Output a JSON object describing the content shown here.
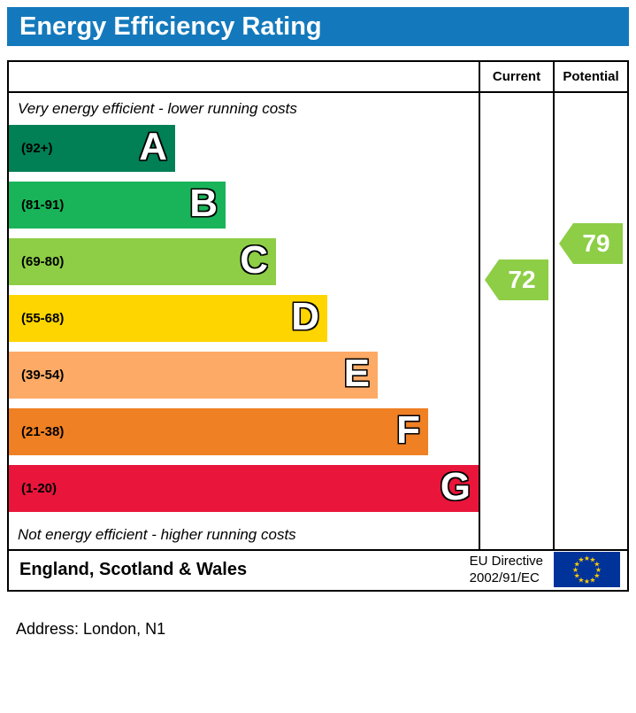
{
  "title": "Energy Efficiency Rating",
  "header": {
    "current_label": "Current",
    "potential_label": "Potential"
  },
  "notes": {
    "top": "Very energy efficient - lower running costs",
    "bottom": "Not energy efficient - higher running costs"
  },
  "bands": [
    {
      "letter": "A",
      "range_label": "(92+)",
      "min": 92,
      "max": 100,
      "color": "#008054"
    },
    {
      "letter": "B",
      "range_label": "(81-91)",
      "min": 81,
      "max": 91,
      "color": "#19b459"
    },
    {
      "letter": "C",
      "range_label": "(69-80)",
      "min": 69,
      "max": 80,
      "color": "#8dce46"
    },
    {
      "letter": "D",
      "range_label": "(55-68)",
      "min": 55,
      "max": 68,
      "color": "#ffd500"
    },
    {
      "letter": "E",
      "range_label": "(39-54)",
      "min": 39,
      "max": 54,
      "color": "#fcaa65"
    },
    {
      "letter": "F",
      "range_label": "(21-38)",
      "min": 21,
      "max": 38,
      "color": "#ef8023"
    },
    {
      "letter": "G",
      "range_label": "(1-20)",
      "min": 1,
      "max": 20,
      "color": "#e9153b"
    }
  ],
  "ratings": {
    "current": {
      "value": "72",
      "color": "#8dce46"
    },
    "potential": {
      "value": "79",
      "color": "#8dce46"
    }
  },
  "footer": {
    "region": "England, Scotland & Wales",
    "directive_line1": "EU Directive",
    "directive_line2": "2002/91/EC"
  },
  "address_line": "Address: London, N1",
  "colors": {
    "title_bar": "#1479bc",
    "eu_flag_bg": "#003399",
    "eu_flag_star": "#ffcc00"
  },
  "chart_data": {
    "type": "bar",
    "title": "Energy Efficiency Rating",
    "categories": [
      "A",
      "B",
      "C",
      "D",
      "E",
      "F",
      "G"
    ],
    "band_ranges": [
      "92+",
      "81-91",
      "69-80",
      "55-68",
      "39-54",
      "21-38",
      "1-20"
    ],
    "band_colors": [
      "#008054",
      "#19b459",
      "#8dce46",
      "#ffd500",
      "#fcaa65",
      "#ef8023",
      "#e9153b"
    ],
    "current": 72,
    "current_band": "C",
    "potential": 79,
    "potential_band": "C",
    "annotations": [
      "Very energy efficient - lower running costs",
      "Not energy efficient - higher running costs"
    ],
    "columns": [
      "Current",
      "Potential"
    ],
    "region": "England, Scotland & Wales",
    "directive": "EU Directive 2002/91/EC"
  }
}
